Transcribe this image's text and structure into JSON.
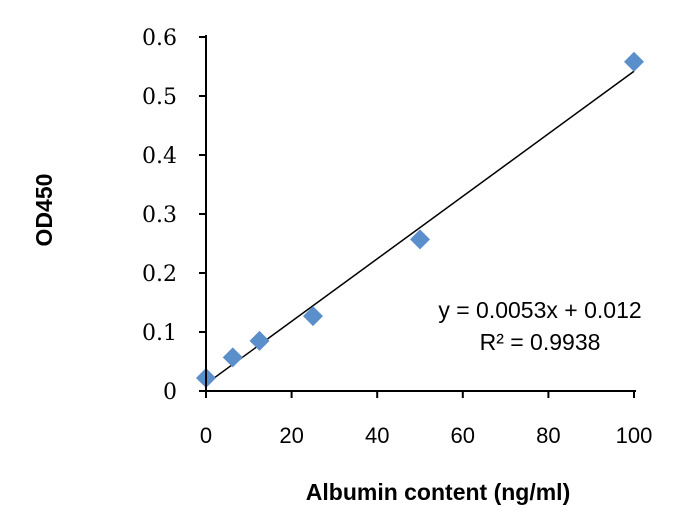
{
  "chart_data": {
    "type": "scatter",
    "title": "",
    "xlabel": "Albumin  content (ng/ml)",
    "ylabel": "OD450",
    "xlim": [
      0,
      100
    ],
    "ylim": [
      0,
      0.6
    ],
    "xticks": [
      0,
      20,
      40,
      60,
      80,
      100
    ],
    "yticks": [
      0,
      0.1,
      0.2,
      0.3,
      0.4,
      0.5,
      0.6
    ],
    "xtick_labels": [
      "0",
      "20",
      "40",
      "60",
      "80",
      "100"
    ],
    "ytick_labels": [
      "0",
      "0.1",
      "0.2",
      "0.3",
      "0.4",
      "0.5",
      "0.6"
    ],
    "grid": false,
    "legend": "none",
    "series": [
      {
        "marker": "diamond",
        "color": "#5b8fcb",
        "points": [
          {
            "x": 0,
            "y": 0.022
          },
          {
            "x": 6.25,
            "y": 0.057
          },
          {
            "x": 12.5,
            "y": 0.085
          },
          {
            "x": 25,
            "y": 0.127
          },
          {
            "x": 50,
            "y": 0.257
          },
          {
            "x": 100,
            "y": 0.558
          }
        ]
      }
    ],
    "trendline": {
      "type": "linear",
      "slope": 0.0053,
      "intercept": 0.012,
      "color": "#000000",
      "equation_text": "y = 0.0053x + 0.012",
      "r2_text": "R² = 0.9938"
    }
  }
}
